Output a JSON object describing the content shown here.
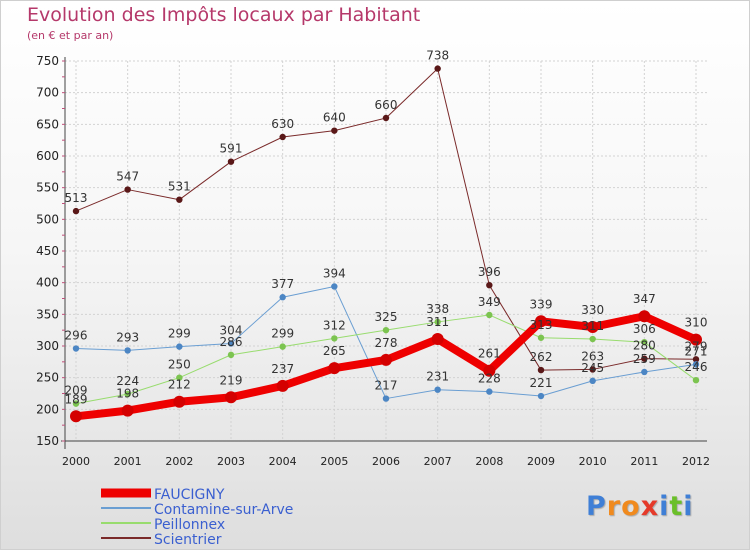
{
  "chart_data": {
    "type": "line",
    "title": "Evolution des Impôts locaux par Habitant",
    "subtitle": "(en € et par an)",
    "categories": [
      "2000",
      "2001",
      "2002",
      "2003",
      "2004",
      "2005",
      "2006",
      "2007",
      "2008",
      "2009",
      "2010",
      "2011",
      "2012"
    ],
    "ylim": [
      150,
      750
    ],
    "yticks": [
      150,
      200,
      250,
      300,
      350,
      400,
      450,
      500,
      550,
      600,
      650,
      700,
      750
    ],
    "grid": true,
    "legend_position": "bottom-left",
    "series": [
      {
        "name": "FAUCIGNY",
        "color": "#ee0000",
        "width": 8,
        "values": [
          189,
          198,
          212,
          219,
          237,
          265,
          278,
          311,
          261,
          339,
          330,
          347,
          310
        ],
        "labels": [
          "189",
          "198",
          "212",
          "219",
          "237",
          "265",
          "278",
          "311",
          "261",
          "339",
          "330",
          "347",
          "310"
        ]
      },
      {
        "name": "Contamine-sur-Arve",
        "color": "#6a9ed2",
        "width": 1,
        "values": [
          296,
          293,
          299,
          304,
          377,
          394,
          217,
          231,
          228,
          221,
          245,
          259,
          271
        ],
        "labels": [
          "296",
          "293",
          "299",
          "304",
          "377",
          "394",
          "217",
          "231",
          "228",
          "221",
          "245",
          "259",
          "271"
        ]
      },
      {
        "name": "Peillonnex",
        "color": "#98dc6e",
        "width": 1,
        "values": [
          209,
          224,
          250,
          286,
          299,
          312,
          325,
          338,
          349,
          313,
          311,
          306,
          246
        ],
        "labels": [
          "209",
          "224",
          "250",
          "286",
          "299",
          "312",
          "325",
          "338",
          "349",
          "313",
          "311",
          "306",
          "246"
        ]
      },
      {
        "name": "Scientrier",
        "color": "#7a2a2a",
        "width": 1,
        "values": [
          513,
          547,
          531,
          591,
          630,
          640,
          660,
          738,
          396,
          262,
          263,
          280,
          279
        ],
        "labels": [
          "513",
          "547",
          "531",
          "591",
          "630",
          "640",
          "660",
          "738",
          "396",
          "262",
          "263",
          "280",
          "279"
        ]
      }
    ]
  },
  "logo": {
    "letters": [
      "P",
      "r",
      "o",
      "x",
      "i",
      "t",
      "i"
    ],
    "colors": [
      "#3f7fd6",
      "#f08a1e",
      "#f08a1e",
      "#e53a2a",
      "#3f7fd6",
      "#6bbf2a",
      "#3f7fd6"
    ]
  }
}
